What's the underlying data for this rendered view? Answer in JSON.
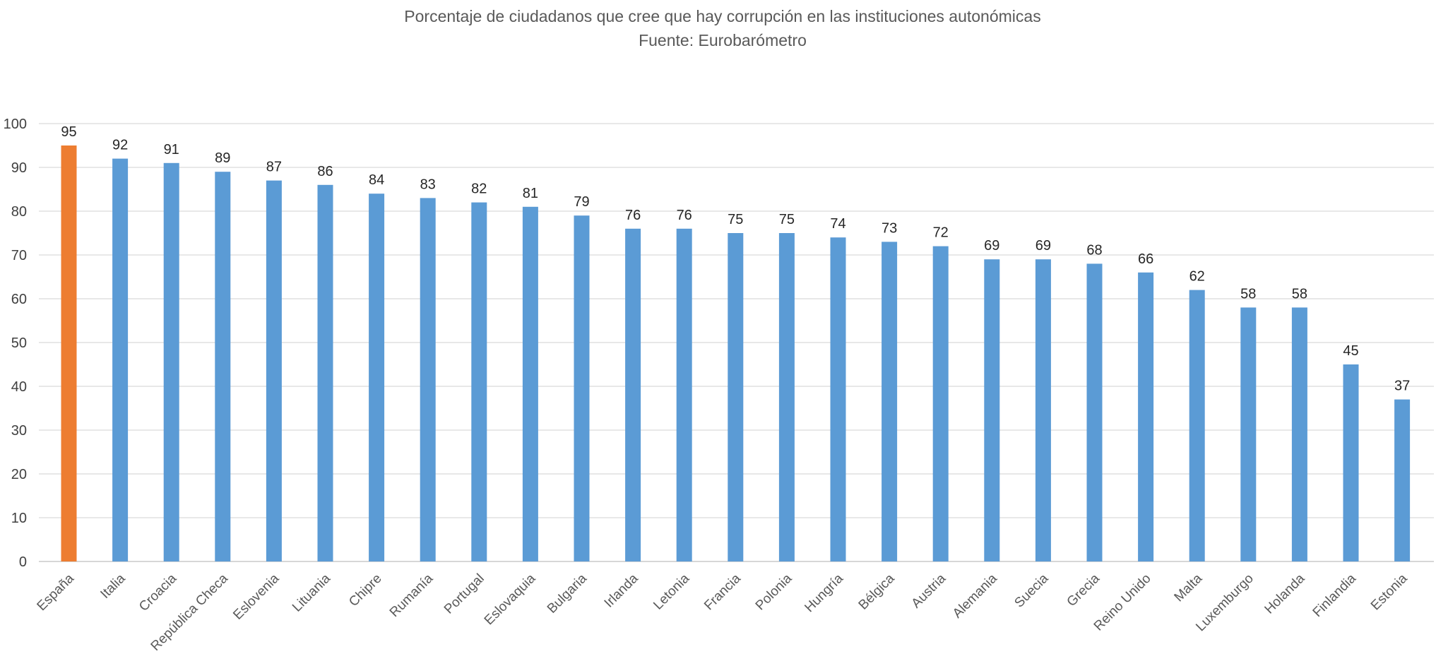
{
  "chart_data": {
    "type": "bar",
    "title": "Porcentaje de ciudadanos que cree que hay corrupción en las instituciones autonómicas",
    "subtitle": "Fuente: Eurobarómetro",
    "xlabel": "",
    "ylabel": "",
    "ylim": [
      0,
      100
    ],
    "yticks": [
      0,
      10,
      20,
      30,
      40,
      50,
      60,
      70,
      80,
      90,
      100
    ],
    "grid": true,
    "legend": "none",
    "categories": [
      "España",
      "Italia",
      "Croacia",
      "República Checa",
      "Eslovenia",
      "Lituania",
      "Chipre",
      "Rumanía",
      "Portugal",
      "Eslovaquia",
      "Bulgaria",
      "Irlanda",
      "Letonia",
      "Francia",
      "Polonia",
      "Hungría",
      "Bélgica",
      "Austria",
      "Alemania",
      "Suecia",
      "Grecia",
      "Reino Unido",
      "Malta",
      "Luxemburgo",
      "Holanda",
      "Finlandia",
      "Estonia"
    ],
    "values": [
      95,
      92,
      91,
      89,
      87,
      86,
      84,
      83,
      82,
      81,
      79,
      76,
      76,
      75,
      75,
      74,
      73,
      72,
      69,
      69,
      68,
      66,
      62,
      58,
      58,
      45,
      37
    ],
    "colors": {
      "default": "#5b9bd5",
      "highlight": "#ed7d31",
      "grid": "#d9d9d9"
    },
    "highlight_category": "España"
  }
}
